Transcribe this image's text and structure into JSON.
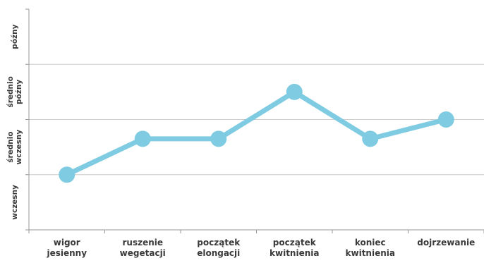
{
  "chart_data": {
    "type": "line",
    "categories": [
      [
        "wigor",
        "jesienny"
      ],
      [
        "ruszenie",
        "wegetacji"
      ],
      [
        "początek",
        "elongacji"
      ],
      [
        "początek",
        "kwitnienia"
      ],
      [
        "koniec",
        "kwitnienia"
      ],
      [
        "dojrzewanie"
      ]
    ],
    "y_levels": [
      [
        "wczesny"
      ],
      [
        "średnio",
        "wczesny"
      ],
      [
        "średnio",
        "późny"
      ],
      [
        "późny"
      ]
    ],
    "values": [
      1,
      1.65,
      1.65,
      2.5,
      1.65,
      2.0
    ],
    "ylim": [
      0,
      4
    ],
    "grid": true,
    "series_color": "#7ecbe2",
    "grid_color": "#cccccc",
    "axis_color": "#999999"
  }
}
